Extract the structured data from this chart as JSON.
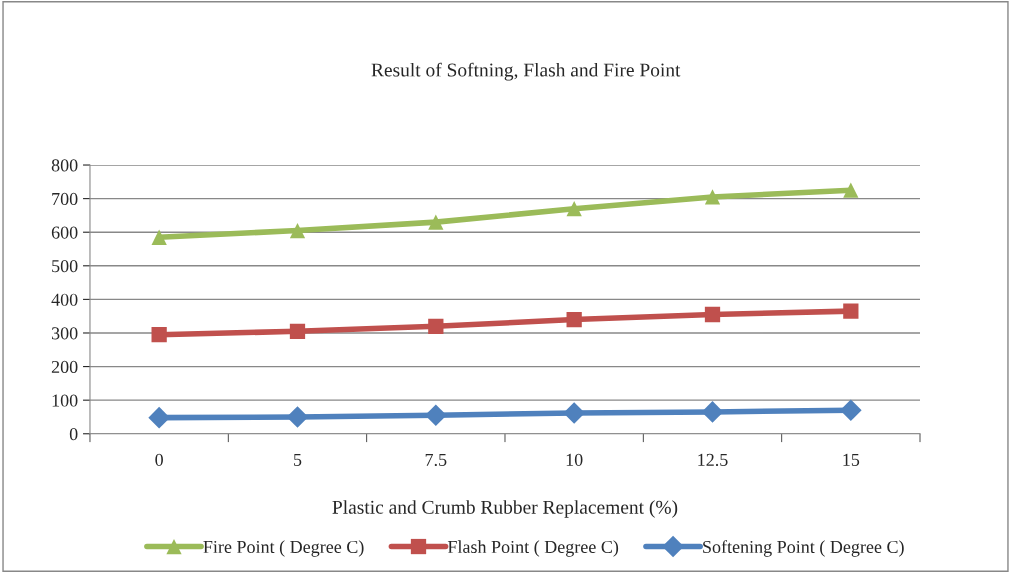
{
  "chart_data": {
    "type": "line",
    "title": "Result of Softning, Flash and Fire Point",
    "xlabel": "Plastic and Crumb Rubber Replacement (%)",
    "categories": [
      "0",
      "5",
      "7.5",
      "10",
      "12.5",
      "15"
    ],
    "series": [
      {
        "name": "Fire Point ( Degree C)",
        "color": "#9bbb59",
        "marker": "triangle",
        "values": [
          585,
          605,
          630,
          670,
          705,
          725
        ]
      },
      {
        "name": "Flash Point ( Degree C)",
        "color": "#c0504d",
        "marker": "square",
        "values": [
          295,
          305,
          320,
          340,
          355,
          365
        ]
      },
      {
        "name": "Softening Point ( Degree C)",
        "color": "#4f81bd",
        "marker": "diamond",
        "values": [
          48,
          50,
          55,
          62,
          65,
          70
        ]
      }
    ],
    "ylim": [
      0,
      800
    ],
    "yticks": [
      0,
      100,
      200,
      300,
      400,
      500,
      600,
      700,
      800
    ],
    "grid": "y",
    "legend": "bottom"
  }
}
